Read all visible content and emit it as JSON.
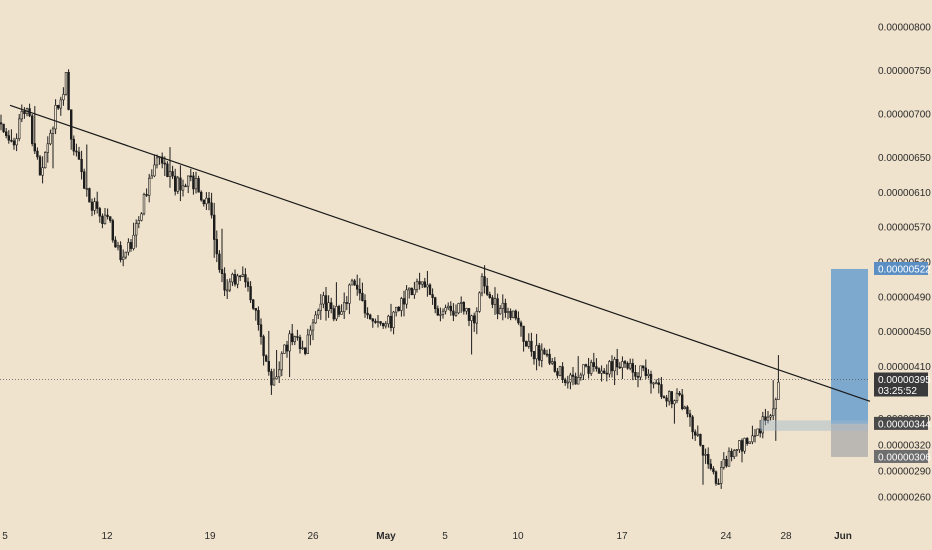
{
  "chart_data": {
    "type": "candlestick",
    "y_range": [
      2.5e-06,
      8.2e-06
    ],
    "y_ticks": [
      {
        "label": "0.00000800",
        "value": 8e-06
      },
      {
        "label": "0.00000750",
        "value": 7.5e-06
      },
      {
        "label": "0.00000700",
        "value": 7e-06
      },
      {
        "label": "0.00000650",
        "value": 6.5e-06
      },
      {
        "label": "0.00000610",
        "value": 6.1e-06
      },
      {
        "label": "0.00000570",
        "value": 5.7e-06
      },
      {
        "label": "0.00000530",
        "value": 5.3e-06
      },
      {
        "label": "0.00000490",
        "value": 4.9e-06
      },
      {
        "label": "0.00000450",
        "value": 4.5e-06
      },
      {
        "label": "0.00000410",
        "value": 4.1e-06
      },
      {
        "label": "0.00000350",
        "value": 3.5e-06
      },
      {
        "label": "0.00000320",
        "value": 3.2e-06
      },
      {
        "label": "0.00000290",
        "value": 2.9e-06
      },
      {
        "label": "0.00000260",
        "value": 2.6e-06
      }
    ],
    "x_ticks": [
      "5",
      "12",
      "19",
      "26",
      "May",
      "5",
      "10",
      "17",
      "24",
      "28",
      "Jun"
    ],
    "price_path": [
      [
        0,
        6.9e-06
      ],
      [
        10,
        6.6e-06
      ],
      [
        26,
        7.1e-06
      ],
      [
        40,
        6.3e-06
      ],
      [
        55,
        7e-06
      ],
      [
        66,
        7.4e-06
      ],
      [
        72,
        6.7e-06
      ],
      [
        90,
        6e-06
      ],
      [
        110,
        5.7e-06
      ],
      [
        122,
        5.3e-06
      ],
      [
        135,
        5.6e-06
      ],
      [
        155,
        6.5e-06
      ],
      [
        175,
        6.2e-06
      ],
      [
        195,
        6.2e-06
      ],
      [
        210,
        5.9e-06
      ],
      [
        225,
        4.9e-06
      ],
      [
        238,
        5.2e-06
      ],
      [
        255,
        4.8e-06
      ],
      [
        270,
        3.9e-06
      ],
      [
        290,
        4.4e-06
      ],
      [
        305,
        4.3e-06
      ],
      [
        320,
        4.9e-06
      ],
      [
        335,
        4.7e-06
      ],
      [
        352,
        5e-06
      ],
      [
        370,
        4.7e-06
      ],
      [
        390,
        4.6e-06
      ],
      [
        405,
        4.9e-06
      ],
      [
        420,
        5.1e-06
      ],
      [
        440,
        4.7e-06
      ],
      [
        460,
        4.8e-06
      ],
      [
        475,
        4.6e-06
      ],
      [
        482,
        5.1e-06
      ],
      [
        495,
        4.8e-06
      ],
      [
        515,
        4.7e-06
      ],
      [
        530,
        4.3e-06
      ],
      [
        545,
        4.2e-06
      ],
      [
        572,
        3.9e-06
      ],
      [
        585,
        4.1e-06
      ],
      [
        610,
        4.1e-06
      ],
      [
        630,
        4.1e-06
      ],
      [
        650,
        4e-06
      ],
      [
        660,
        3.8e-06
      ],
      [
        680,
        3.7e-06
      ],
      [
        700,
        3.2e-06
      ],
      [
        717,
        2.8e-06
      ],
      [
        730,
        3.1e-06
      ],
      [
        745,
        3.2e-06
      ],
      [
        760,
        3.4e-06
      ],
      [
        772,
        3.6e-06
      ],
      [
        778,
        3.9e-06
      ]
    ],
    "trendline": [
      [
        10,
        7.1e-06
      ],
      [
        870,
        3.7e-06
      ]
    ],
    "current_price": {
      "label": "0.00000395",
      "value": 3.95e-06,
      "countdown": "03:25:52"
    },
    "position": {
      "entry": {
        "label": "0.00000344",
        "value": 3.44e-06
      },
      "target": {
        "label": "0.00000522",
        "value": 5.22e-06
      },
      "stop": {
        "label": "0.00000306",
        "value": 3.06e-06
      }
    },
    "colors": {
      "background": "#f0e3cd",
      "candle": "#1c1c1c",
      "trendline": "#1a1a1a",
      "profit_zone": "#6a9fce",
      "loss_zone": "#a9a9a9",
      "current_tag": "#3a3a3a",
      "entry_tag": "#4a4a4a",
      "target_tag": "#5b8fc4",
      "stop_tag": "#6e6e6e"
    }
  }
}
